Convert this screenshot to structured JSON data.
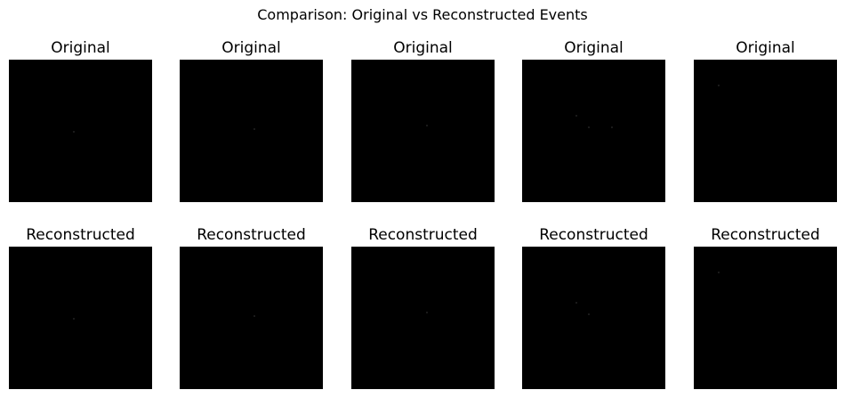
{
  "figure": {
    "suptitle": "Comparison: Original vs Reconstructed Events"
  },
  "rows": [
    {
      "name": "original",
      "panels": [
        {
          "title": "Original"
        },
        {
          "title": "Original"
        },
        {
          "title": "Original"
        },
        {
          "title": "Original"
        },
        {
          "title": "Original"
        }
      ]
    },
    {
      "name": "reconstructed",
      "panels": [
        {
          "title": "Reconstructed"
        },
        {
          "title": "Reconstructed"
        },
        {
          "title": "Reconstructed"
        },
        {
          "title": "Reconstructed"
        },
        {
          "title": "Reconstructed"
        }
      ]
    }
  ],
  "colors": {
    "background": "#ffffff",
    "image_fill": "#000000"
  }
}
